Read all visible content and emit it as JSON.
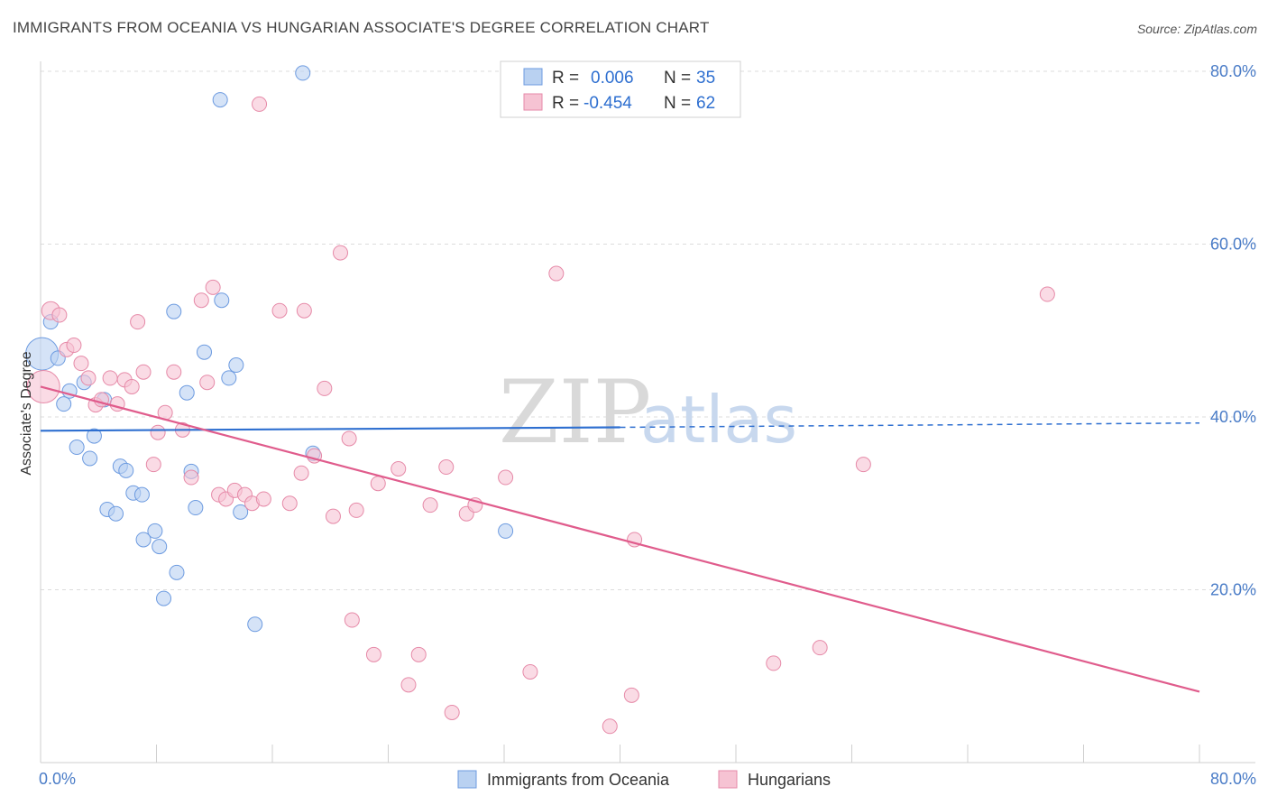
{
  "title": "IMMIGRANTS FROM OCEANIA VS HUNGARIAN ASSOCIATE'S DEGREE CORRELATION CHART",
  "source": "Source: ZipAtlas.com",
  "watermark": {
    "zip": "ZIP",
    "atlas": "atlas"
  },
  "colors": {
    "blue_fill": "#b9d1f1",
    "blue_stroke": "#6d9be0",
    "blue_line": "#2e6fd0",
    "pink_fill": "#f6c3d3",
    "pink_stroke": "#e68aa8",
    "pink_line": "#e05c8c",
    "tick_label": "#4a7cc7",
    "grid": "#dcdcdc"
  },
  "legend": {
    "rows": [
      {
        "r_label": "R =",
        "r_value": "0.006",
        "n_label": "N =",
        "n_value": "35",
        "series": "blue"
      },
      {
        "r_label": "R =",
        "r_value": "-0.454",
        "n_label": "N =",
        "n_value": "62",
        "series": "pink"
      }
    ]
  },
  "bottom_legend": [
    {
      "label": "Immigrants from Oceania",
      "series": "blue"
    },
    {
      "label": "Hungarians",
      "series": "pink"
    }
  ],
  "chart_data": {
    "type": "scatter",
    "ylabel": "Associate's Degree",
    "xlabel": "",
    "xlim": [
      0,
      80
    ],
    "ylim": [
      0,
      80
    ],
    "x_tick_labels": [
      {
        "value": 0,
        "label": "0.0%"
      },
      {
        "value": 80,
        "label": "80.0%"
      }
    ],
    "y_tick_labels": [
      {
        "value": 20,
        "label": "20.0%"
      },
      {
        "value": 40,
        "label": "40.0%"
      },
      {
        "value": 60,
        "label": "60.0%"
      },
      {
        "value": 80,
        "label": "80.0%"
      }
    ],
    "x_minor_ticks": [
      0,
      8,
      16,
      24,
      32,
      40,
      48,
      56,
      64,
      72,
      80
    ],
    "grid": true,
    "series": [
      {
        "name": "Immigrants from Oceania",
        "color": "blue",
        "points": [
          [
            0.1,
            47.3,
            18
          ],
          [
            0.7,
            51.0,
            8
          ],
          [
            1.2,
            46.8,
            8
          ],
          [
            1.6,
            41.5,
            8
          ],
          [
            2.0,
            43.0,
            8
          ],
          [
            2.5,
            36.5,
            8
          ],
          [
            3.0,
            44.0,
            8
          ],
          [
            3.4,
            35.2,
            8
          ],
          [
            3.7,
            37.8,
            8
          ],
          [
            4.4,
            42.0,
            8
          ],
          [
            4.6,
            29.3,
            8
          ],
          [
            5.2,
            28.8,
            8
          ],
          [
            5.5,
            34.3,
            8
          ],
          [
            5.9,
            33.8,
            8
          ],
          [
            6.4,
            31.2,
            8
          ],
          [
            7.0,
            31.0,
            8
          ],
          [
            7.1,
            25.8,
            8
          ],
          [
            7.9,
            26.8,
            8
          ],
          [
            8.2,
            25.0,
            8
          ],
          [
            8.5,
            19.0,
            8
          ],
          [
            9.2,
            52.2,
            8
          ],
          [
            9.4,
            22.0,
            8
          ],
          [
            10.1,
            42.8,
            8
          ],
          [
            10.4,
            33.7,
            8
          ],
          [
            10.7,
            29.5,
            8
          ],
          [
            11.3,
            47.5,
            8
          ],
          [
            12.4,
            76.7,
            8
          ],
          [
            12.5,
            53.5,
            8
          ],
          [
            13.0,
            44.5,
            8
          ],
          [
            13.5,
            46.0,
            8
          ],
          [
            13.8,
            29.0,
            8
          ],
          [
            14.8,
            16.0,
            8
          ],
          [
            18.1,
            79.8,
            8
          ],
          [
            18.8,
            35.8,
            8
          ],
          [
            32.1,
            26.8,
            8
          ]
        ],
        "trend": {
          "x": [
            0,
            40
          ],
          "y": [
            38.4,
            38.8
          ],
          "dashed_to": [
            80,
            39.3
          ]
        }
      },
      {
        "name": "Hungarians",
        "color": "pink",
        "points": [
          [
            0.2,
            43.5,
            18
          ],
          [
            0.7,
            52.3,
            10
          ],
          [
            1.3,
            51.8,
            8
          ],
          [
            1.8,
            47.8,
            8
          ],
          [
            2.3,
            48.3,
            8
          ],
          [
            2.8,
            46.2,
            8
          ],
          [
            3.3,
            44.5,
            8
          ],
          [
            3.8,
            41.4,
            8
          ],
          [
            4.2,
            42.0,
            8
          ],
          [
            4.8,
            44.5,
            8
          ],
          [
            5.3,
            41.5,
            8
          ],
          [
            5.8,
            44.3,
            8
          ],
          [
            6.3,
            43.5,
            8
          ],
          [
            6.7,
            51.0,
            8
          ],
          [
            7.1,
            45.2,
            8
          ],
          [
            7.8,
            34.5,
            8
          ],
          [
            8.1,
            38.2,
            8
          ],
          [
            8.6,
            40.5,
            8
          ],
          [
            9.2,
            45.2,
            8
          ],
          [
            9.8,
            38.5,
            8
          ],
          [
            10.4,
            33.0,
            8
          ],
          [
            11.1,
            53.5,
            8
          ],
          [
            11.5,
            44.0,
            8
          ],
          [
            11.9,
            55.0,
            8
          ],
          [
            12.3,
            31.0,
            8
          ],
          [
            12.8,
            30.5,
            8
          ],
          [
            13.4,
            31.5,
            8
          ],
          [
            14.1,
            31.0,
            8
          ],
          [
            14.6,
            30.0,
            8
          ],
          [
            15.4,
            30.5,
            8
          ],
          [
            15.1,
            76.2,
            8
          ],
          [
            16.5,
            52.3,
            8
          ],
          [
            17.2,
            30.0,
            8
          ],
          [
            18.0,
            33.5,
            8
          ],
          [
            18.2,
            52.3,
            8
          ],
          [
            18.9,
            35.5,
            8
          ],
          [
            19.6,
            43.3,
            8
          ],
          [
            20.2,
            28.5,
            8
          ],
          [
            20.7,
            59.0,
            8
          ],
          [
            21.3,
            37.5,
            8
          ],
          [
            21.5,
            16.5,
            8
          ],
          [
            21.8,
            29.2,
            8
          ],
          [
            23.0,
            12.5,
            8
          ],
          [
            23.3,
            32.3,
            8
          ],
          [
            24.7,
            34.0,
            8
          ],
          [
            25.4,
            9.0,
            8
          ],
          [
            26.1,
            12.5,
            8
          ],
          [
            26.9,
            29.8,
            8
          ],
          [
            28.0,
            34.2,
            8
          ],
          [
            28.4,
            5.8,
            8
          ],
          [
            29.4,
            28.8,
            8
          ],
          [
            30.0,
            29.8,
            8
          ],
          [
            32.1,
            33.0,
            8
          ],
          [
            33.8,
            10.5,
            8
          ],
          [
            35.6,
            56.6,
            8
          ],
          [
            39.3,
            4.2,
            8
          ],
          [
            40.8,
            7.8,
            8
          ],
          [
            41.0,
            25.8,
            8
          ],
          [
            50.6,
            11.5,
            8
          ],
          [
            53.8,
            13.3,
            8
          ],
          [
            56.8,
            34.5,
            8
          ],
          [
            69.5,
            54.2,
            8
          ]
        ],
        "trend": {
          "x": [
            0,
            80
          ],
          "y": [
            43.5,
            8.2
          ]
        }
      }
    ]
  }
}
